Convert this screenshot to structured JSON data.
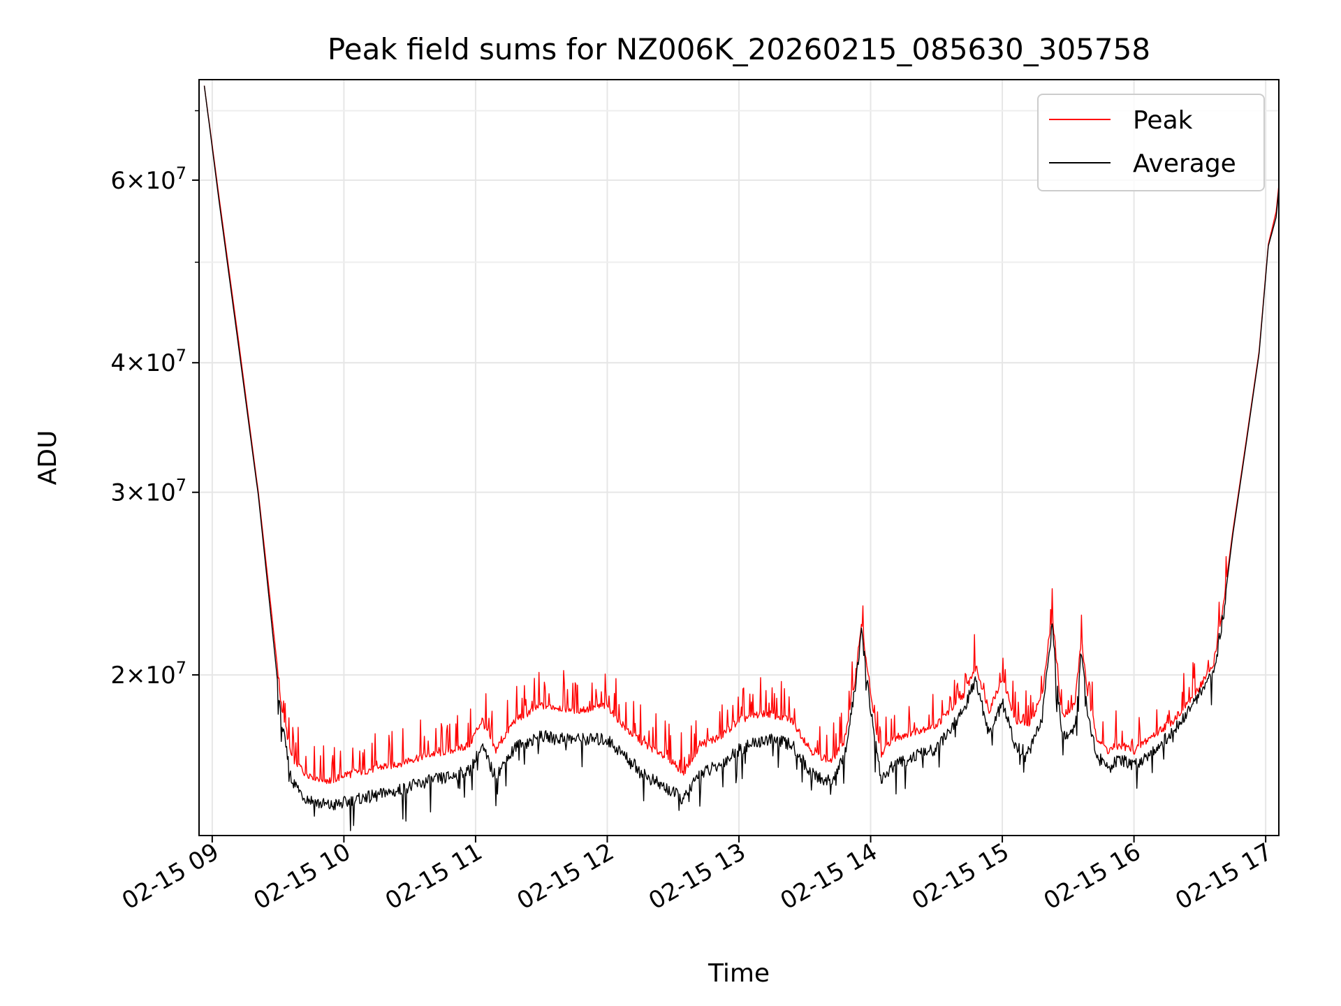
{
  "chart_data": {
    "type": "line",
    "title": "Peak field sums for NZ006K_20260215_085630_305758",
    "xlabel": "Time",
    "ylabel": "ADU",
    "y_scale": "log",
    "ylim": [
      14000000,
      75000000
    ],
    "xlim_hours": [
      8.9,
      17.1
    ],
    "grid": true,
    "legend_position": "upper right",
    "x_ticks": [
      {
        "hour": 9,
        "label": "02-15 09"
      },
      {
        "hour": 10,
        "label": "02-15 10"
      },
      {
        "hour": 11,
        "label": "02-15 11"
      },
      {
        "hour": 12,
        "label": "02-15 12"
      },
      {
        "hour": 13,
        "label": "02-15 13"
      },
      {
        "hour": 14,
        "label": "02-15 14"
      },
      {
        "hour": 15,
        "label": "02-15 15"
      },
      {
        "hour": 16,
        "label": "02-15 16"
      },
      {
        "hour": 17,
        "label": "02-15 17"
      }
    ],
    "y_major_ticks": [
      {
        "value": 20000000,
        "mantissa": "2",
        "base": "10",
        "exp": "7"
      },
      {
        "value": 30000000,
        "mantissa": "3",
        "base": "10",
        "exp": "7"
      },
      {
        "value": 40000000,
        "mantissa": "4",
        "base": "10",
        "exp": "7"
      },
      {
        "value": 60000000,
        "mantissa": "6",
        "base": "10",
        "exp": "7"
      }
    ],
    "y_minor_ticks": [
      50000000,
      70000000
    ],
    "series": [
      {
        "name": "Peak",
        "color": "#ff0000",
        "x_hours": [
          8.94,
          9.05,
          9.2,
          9.35,
          9.45,
          9.52,
          9.6,
          9.7,
          9.8,
          9.9,
          10.0,
          10.2,
          10.4,
          10.6,
          10.8,
          10.95,
          11.05,
          11.15,
          11.3,
          11.5,
          11.8,
          12.0,
          12.15,
          12.3,
          12.45,
          12.58,
          12.7,
          12.85,
          13.0,
          13.2,
          13.4,
          13.55,
          13.7,
          13.8,
          13.88,
          13.93,
          14.0,
          14.08,
          14.15,
          14.3,
          14.5,
          14.7,
          14.8,
          14.9,
          15.0,
          15.1,
          15.2,
          15.3,
          15.38,
          15.45,
          15.55,
          15.6,
          15.65,
          15.72,
          15.8,
          15.9,
          16.0,
          16.1,
          16.2,
          16.3,
          16.45,
          16.6,
          16.68,
          16.75,
          16.85,
          16.95,
          17.02,
          17.08,
          17.12
        ],
        "values": [
          74000000,
          58000000,
          42000000,
          30000000,
          23000000,
          19000000,
          16800000,
          16200000,
          16000000,
          15900000,
          16100000,
          16300000,
          16500000,
          16800000,
          17000000,
          17200000,
          18200000,
          17000000,
          18200000,
          18800000,
          18600000,
          18800000,
          17800000,
          17200000,
          16800000,
          16200000,
          17200000,
          17500000,
          18200000,
          18500000,
          18200000,
          17000000,
          16600000,
          17400000,
          19800000,
          22600000,
          19200000,
          16800000,
          17400000,
          17700000,
          18000000,
          19200000,
          20500000,
          18600000,
          20000000,
          18200000,
          18000000,
          19200000,
          23000000,
          18400000,
          18800000,
          21800000,
          19200000,
          17500000,
          17000000,
          17200000,
          17000000,
          17400000,
          17800000,
          18200000,
          19200000,
          20500000,
          23500000,
          27500000,
          33500000,
          41000000,
          52000000,
          56000000,
          63000000
        ]
      },
      {
        "name": "Average",
        "color": "#000000",
        "x_hours": [
          8.94,
          9.05,
          9.2,
          9.35,
          9.45,
          9.52,
          9.6,
          9.7,
          9.8,
          9.9,
          10.0,
          10.2,
          10.4,
          10.6,
          10.8,
          10.95,
          11.05,
          11.15,
          11.3,
          11.5,
          11.8,
          12.0,
          12.15,
          12.3,
          12.45,
          12.58,
          12.7,
          12.85,
          13.0,
          13.2,
          13.4,
          13.55,
          13.7,
          13.8,
          13.88,
          13.93,
          14.0,
          14.08,
          14.15,
          14.3,
          14.5,
          14.7,
          14.8,
          14.9,
          15.0,
          15.1,
          15.2,
          15.3,
          15.38,
          15.45,
          15.55,
          15.6,
          15.65,
          15.72,
          15.8,
          15.9,
          16.0,
          16.1,
          16.2,
          16.3,
          16.45,
          16.6,
          16.68,
          16.75,
          16.85,
          16.95,
          17.02,
          17.08,
          17.12
        ],
        "values": [
          74000000,
          57500000,
          41500000,
          29800000,
          22500000,
          18400000,
          16000000,
          15400000,
          15200000,
          15100000,
          15200000,
          15400000,
          15600000,
          15900000,
          16100000,
          16300000,
          17200000,
          16100000,
          17200000,
          17600000,
          17500000,
          17500000,
          16800000,
          16100000,
          15700000,
          15300000,
          16200000,
          16500000,
          17100000,
          17500000,
          17300000,
          16200000,
          15900000,
          16800000,
          19500000,
          22200000,
          18700000,
          16000000,
          16400000,
          16800000,
          17100000,
          18600000,
          20000000,
          17600000,
          19000000,
          17200000,
          17000000,
          18200000,
          22600000,
          17600000,
          17900000,
          21400000,
          18500000,
          16800000,
          16500000,
          16700000,
          16500000,
          16900000,
          17300000,
          17800000,
          18900000,
          20200000,
          23100000,
          27300000,
          33300000,
          40800000,
          51800000,
          55300000,
          62800000
        ]
      }
    ]
  }
}
